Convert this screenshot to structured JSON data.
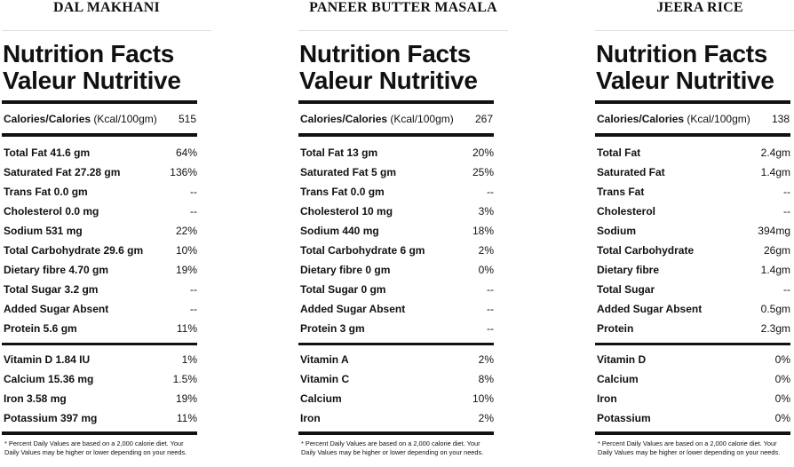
{
  "panels": [
    {
      "dish": "DAL MAKHANI",
      "title1": "Nutrition Facts",
      "title2": "Valeur Nutritive",
      "calories_label": "Calories/Calories",
      "calories_unit": " (Kcal/100gm)",
      "calories_value": "515",
      "nutrients": [
        {
          "label": "Total Fat 41.6 gm",
          "value": "64%"
        },
        {
          "label": "Saturated Fat 27.28 gm",
          "value": "136%"
        },
        {
          "label": "Trans Fat 0.0 gm",
          "value": "--"
        },
        {
          "label": "Cholesterol 0.0 mg",
          "value": "--"
        },
        {
          "label": "Sodium 531 mg",
          "value": "22%"
        },
        {
          "label": "Total Carbohydrate 29.6 gm",
          "value": "10%"
        },
        {
          "label": "Dietary fibre 4.70 gm",
          "value": "19%"
        },
        {
          "label": "Total Sugar 3.2 gm",
          "value": "--"
        },
        {
          "label": "Added Sugar Absent",
          "value": "--"
        },
        {
          "label": "Protein 5.6 gm",
          "value": "11%"
        }
      ],
      "vitamins": [
        {
          "label": "Vitamin D 1.84 IU",
          "value": "1%"
        },
        {
          "label": "Calcium 15.36 mg",
          "value": "1.5%"
        },
        {
          "label": "Iron 3.58 mg",
          "value": "19%"
        },
        {
          "label": "Potassium 397 mg",
          "value": "11%"
        }
      ],
      "footnote": "* Percent Daily Values are based on a 2,000 calorie diet. Your Daily Values may be higher or lower depending on your needs."
    },
    {
      "dish": "PANEER BUTTER MASALA",
      "title1": "Nutrition Facts",
      "title2": "Valeur Nutritive",
      "calories_label": "Calories/Calories",
      "calories_unit": " (Kcal/100gm)",
      "calories_value": "267",
      "nutrients": [
        {
          "label": "Total Fat 13 gm",
          "value": "20%"
        },
        {
          "label": "Saturated Fat 5 gm",
          "value": "25%"
        },
        {
          "label": "Trans Fat 0.0 gm",
          "value": "--"
        },
        {
          "label": "Cholesterol 10 mg",
          "value": "3%"
        },
        {
          "label": "Sodium 440 mg",
          "value": "18%"
        },
        {
          "label": "Total Carbohydrate 6 gm",
          "value": "2%"
        },
        {
          "label": "Dietary fibre 0 gm",
          "value": "0%"
        },
        {
          "label": "Total Sugar 0 gm",
          "value": "--"
        },
        {
          "label": "Added Sugar Absent",
          "value": "--"
        },
        {
          "label": "Protein 3 gm",
          "value": "--"
        }
      ],
      "vitamins": [
        {
          "label": "Vitamin A",
          "value": "2%"
        },
        {
          "label": "Vitamin C",
          "value": "8%"
        },
        {
          "label": "Calcium",
          "value": "10%"
        },
        {
          "label": "Iron",
          "value": "2%"
        }
      ],
      "footnote": "* Percent Daily Values are based on a 2,000 calorie diet. Your Daily Values may be higher or lower depending on your needs."
    },
    {
      "dish": "JEERA RICE",
      "title1": "Nutrition Facts",
      "title2": "Valeur Nutritive",
      "calories_label": "Calories/Calories",
      "calories_unit": " (Kcal/100gm)",
      "calories_value": "138",
      "nutrients": [
        {
          "label": "Total Fat",
          "value": "2.4gm"
        },
        {
          "label": "Saturated Fat",
          "value": "1.4gm"
        },
        {
          "label": "Trans Fat",
          "value": "--"
        },
        {
          "label": "Cholesterol",
          "value": "--"
        },
        {
          "label": "Sodium",
          "value": "394mg"
        },
        {
          "label": "Total Carbohydrate",
          "value": "26gm"
        },
        {
          "label": "Dietary fibre",
          "value": "1.4gm"
        },
        {
          "label": "Total Sugar",
          "value": "--"
        },
        {
          "label": "Added Sugar Absent",
          "value": "0.5gm"
        },
        {
          "label": "Protein",
          "value": "2.3gm"
        }
      ],
      "vitamins": [
        {
          "label": "Vitamin D",
          "value": "0%"
        },
        {
          "label": "Calcium",
          "value": "0%"
        },
        {
          "label": "Iron",
          "value": "0%"
        },
        {
          "label": "Potassium",
          "value": "0%"
        }
      ],
      "footnote": "* Percent Daily Values are based on a 2,000 calorie diet. Your Daily Values may be higher or lower depending on your needs."
    }
  ]
}
